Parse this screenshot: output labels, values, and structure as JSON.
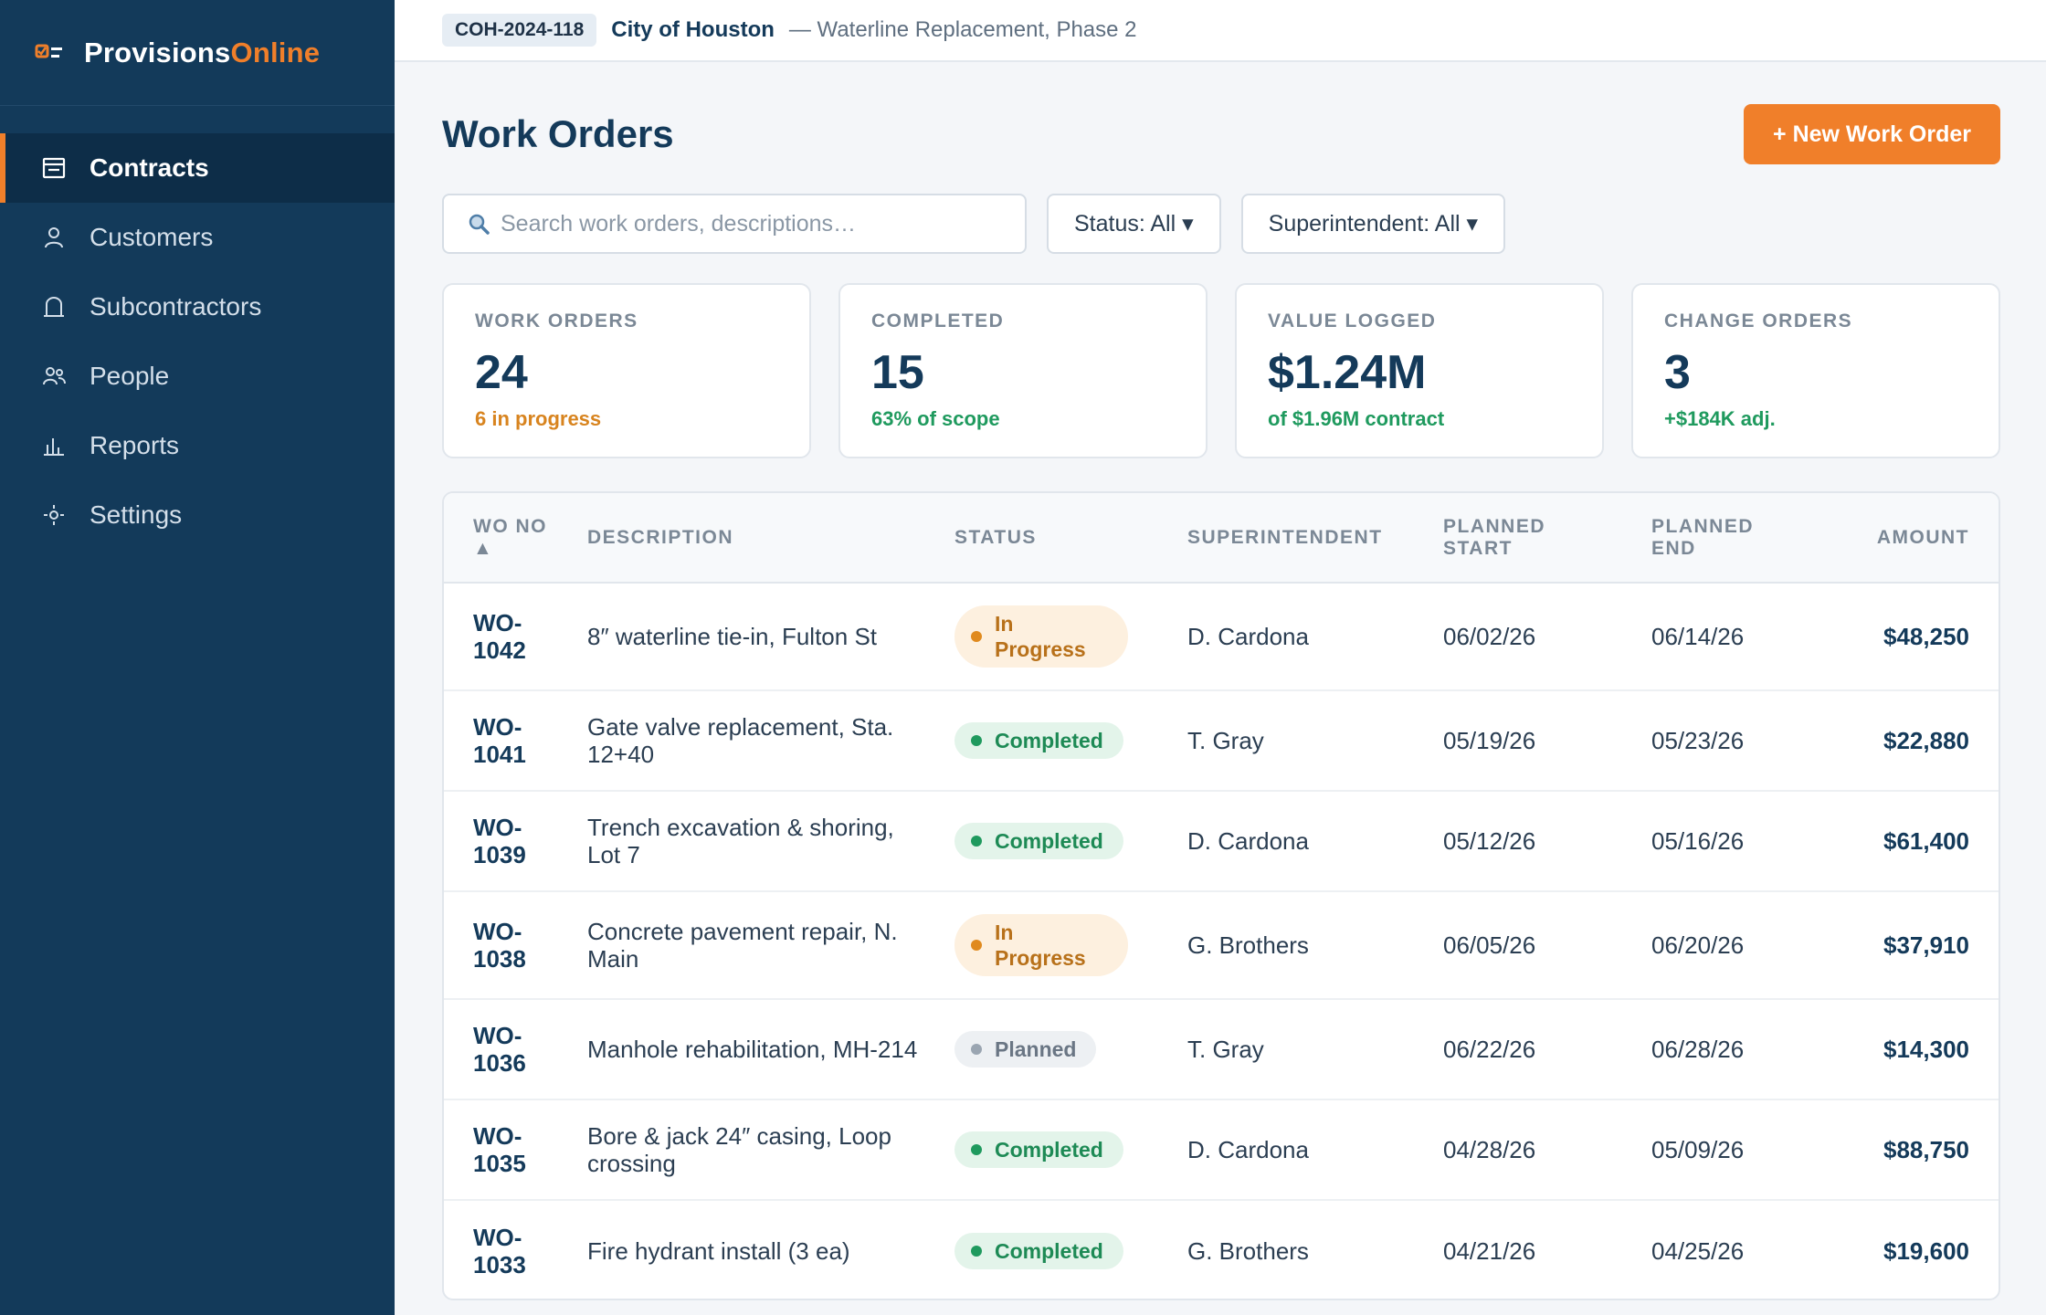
{
  "app": {
    "logo_primary": "Provisions",
    "logo_accent": "Online",
    "logo_icon": "checklist-icon",
    "accent_color": "#f07f2a",
    "sidebar_color": "#133a5a"
  },
  "sidebar": {
    "items": [
      {
        "label": "Contracts",
        "icon": "contracts-icon",
        "active": true
      },
      {
        "label": "Customers",
        "icon": "user-icon",
        "active": false
      },
      {
        "label": "Subcontractors",
        "icon": "building-icon",
        "active": false
      },
      {
        "label": "People",
        "icon": "people-icon",
        "active": false
      },
      {
        "label": "Reports",
        "icon": "bar-chart-icon",
        "active": false
      },
      {
        "label": "Settings",
        "icon": "gear-icon",
        "active": false
      }
    ]
  },
  "topbar": {
    "contract_code": "COH-2024-118",
    "customer": "City of Houston",
    "project": "— Waterline Replacement, Phase 2"
  },
  "page": {
    "title": "Work Orders",
    "new_button": "+ New Work Order"
  },
  "filters": {
    "search_placeholder": "Search work orders, descriptions…",
    "status": "Status: All ▾",
    "superintendent": "Superintendent: All ▾"
  },
  "stats": [
    {
      "label": "WORK ORDERS",
      "value": "24",
      "sub": "6 in progress",
      "sub_color": "orange"
    },
    {
      "label": "COMPLETED",
      "value": "15",
      "sub": "63% of scope",
      "sub_color": "green"
    },
    {
      "label": "VALUE LOGGED",
      "value": "$1.24M",
      "sub": "of $1.96M contract",
      "sub_color": "green"
    },
    {
      "label": "CHANGE ORDERS",
      "value": "3",
      "sub": "+$184K adj.",
      "sub_color": "green"
    }
  ],
  "table": {
    "headers": {
      "wo_no": "WO NO",
      "sort_indicator": "▲",
      "description": "DESCRIPTION",
      "status": "STATUS",
      "superintendent": "SUPERINTENDENT",
      "planned_start_1": "PLANNED",
      "planned_start_2": "START",
      "planned_end_1": "PLANNED",
      "planned_end_2": "END",
      "amount": "AMOUNT"
    },
    "rows": [
      {
        "wo_1": "WO-",
        "wo_2": "1042",
        "description": "8″ waterline tie-in, Fulton St",
        "status_1": "In",
        "status_2": "Progress",
        "status_type": "progress",
        "superintendent": "D. Cardona",
        "start": "06/02/26",
        "end": "06/14/26",
        "amount": "$48,250"
      },
      {
        "wo_1": "WO-",
        "wo_2": "1041",
        "description": "Gate valve replacement, Sta. 12+40",
        "status_1": "Completed",
        "status_2": "",
        "status_type": "completed",
        "superintendent": "T. Gray",
        "start": "05/19/26",
        "end": "05/23/26",
        "amount": "$22,880"
      },
      {
        "wo_1": "WO-",
        "wo_2": "1039",
        "description": "Trench excavation & shoring, Lot 7",
        "status_1": "Completed",
        "status_2": "",
        "status_type": "completed",
        "superintendent": "D. Cardona",
        "start": "05/12/26",
        "end": "05/16/26",
        "amount": "$61,400"
      },
      {
        "wo_1": "WO-",
        "wo_2": "1038",
        "description": "Concrete pavement repair, N. Main",
        "status_1": "In",
        "status_2": "Progress",
        "status_type": "progress",
        "superintendent": "G. Brothers",
        "start": "06/05/26",
        "end": "06/20/26",
        "amount": "$37,910"
      },
      {
        "wo_1": "WO-",
        "wo_2": "1036",
        "description": "Manhole rehabilitation, MH-214",
        "status_1": "Planned",
        "status_2": "",
        "status_type": "planned",
        "superintendent": "T. Gray",
        "start": "06/22/26",
        "end": "06/28/26",
        "amount": "$14,300"
      },
      {
        "wo_1": "WO-",
        "wo_2": "1035",
        "description": "Bore & jack 24″ casing, Loop crossing",
        "status_1": "Completed",
        "status_2": "",
        "status_type": "completed",
        "superintendent": "D. Cardona",
        "start": "04/28/26",
        "end": "05/09/26",
        "amount": "$88,750"
      },
      {
        "wo_1": "WO-",
        "wo_2": "1033",
        "description": "Fire hydrant install (3 ea)",
        "status_1": "Completed",
        "status_2": "",
        "status_type": "completed",
        "superintendent": "G. Brothers",
        "start": "04/21/26",
        "end": "04/25/26",
        "amount": "$19,600"
      }
    ]
  }
}
